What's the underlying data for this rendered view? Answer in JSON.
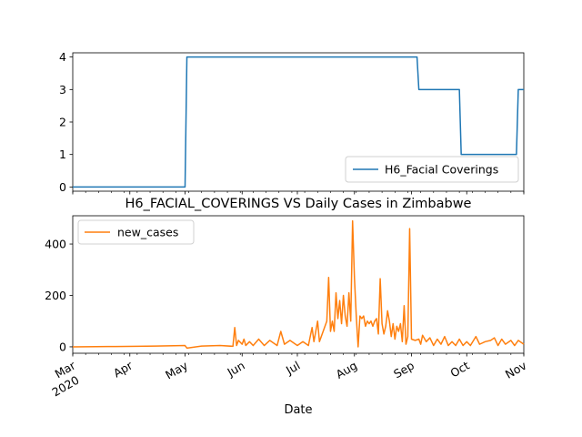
{
  "chart_data": [
    {
      "type": "line",
      "title": "",
      "xlabel": "",
      "ylabel": "",
      "xlim": [
        "2020-03-01",
        "2020-11-01"
      ],
      "ylim": [
        -0.13,
        4.13
      ],
      "y_ticks": [
        0,
        1,
        2,
        3,
        4
      ],
      "grid": false,
      "legend_position": "lower-right",
      "series": [
        {
          "name": "H6_Facial Coverings",
          "color": "#1f77b4",
          "step_points": [
            {
              "x": "2020-03-01",
              "y": 0
            },
            {
              "x": "2020-05-01",
              "y": 0
            },
            {
              "x": "2020-05-02",
              "y": 4
            },
            {
              "x": "2020-09-04",
              "y": 4
            },
            {
              "x": "2020-09-05",
              "y": 3
            },
            {
              "x": "2020-09-27",
              "y": 3
            },
            {
              "x": "2020-09-28",
              "y": 1
            },
            {
              "x": "2020-10-28",
              "y": 1
            },
            {
              "x": "2020-10-29",
              "y": 3
            },
            {
              "x": "2020-11-01",
              "y": 3
            }
          ]
        }
      ]
    },
    {
      "type": "line",
      "title": "H6_FACIAL_COVERINGS VS Daily Cases in Zimbabwe",
      "xlabel": "Date",
      "ylabel": "",
      "xlim": [
        "2020-03-01",
        "2020-11-01"
      ],
      "ylim": [
        -25,
        510
      ],
      "y_ticks": [
        0,
        200,
        400
      ],
      "x_ticks": [
        {
          "date": "2020-03-01",
          "label": "Mar",
          "sublabel": "2020"
        },
        {
          "date": "2020-04-01",
          "label": "Apr"
        },
        {
          "date": "2020-05-01",
          "label": "May"
        },
        {
          "date": "2020-06-01",
          "label": "Jun"
        },
        {
          "date": "2020-07-01",
          "label": "Jul"
        },
        {
          "date": "2020-08-01",
          "label": "Aug"
        },
        {
          "date": "2020-09-01",
          "label": "Sep"
        },
        {
          "date": "2020-10-01",
          "label": "Oct"
        },
        {
          "date": "2020-11-01",
          "label": "Nov"
        }
      ],
      "grid": false,
      "legend_position": "top-left",
      "series": [
        {
          "name": "new_cases",
          "color": "#ff7f0e",
          "points": [
            {
              "x": "2020-03-01",
              "y": 0
            },
            {
              "x": "2020-03-20",
              "y": 1
            },
            {
              "x": "2020-04-05",
              "y": 2
            },
            {
              "x": "2020-04-15",
              "y": 3
            },
            {
              "x": "2020-04-25",
              "y": 4
            },
            {
              "x": "2020-05-01",
              "y": 5
            },
            {
              "x": "2020-05-02",
              "y": -5
            },
            {
              "x": "2020-05-10",
              "y": 3
            },
            {
              "x": "2020-05-20",
              "y": 5
            },
            {
              "x": "2020-05-27",
              "y": 2
            },
            {
              "x": "2020-05-28",
              "y": 75
            },
            {
              "x": "2020-05-29",
              "y": 5
            },
            {
              "x": "2020-05-30",
              "y": 25
            },
            {
              "x": "2020-06-01",
              "y": 10
            },
            {
              "x": "2020-06-02",
              "y": 30
            },
            {
              "x": "2020-06-03",
              "y": 5
            },
            {
              "x": "2020-06-05",
              "y": 20
            },
            {
              "x": "2020-06-07",
              "y": 5
            },
            {
              "x": "2020-06-10",
              "y": 30
            },
            {
              "x": "2020-06-13",
              "y": 5
            },
            {
              "x": "2020-06-16",
              "y": 25
            },
            {
              "x": "2020-06-20",
              "y": 5
            },
            {
              "x": "2020-06-22",
              "y": 60
            },
            {
              "x": "2020-06-24",
              "y": 10
            },
            {
              "x": "2020-06-27",
              "y": 25
            },
            {
              "x": "2020-07-01",
              "y": 5
            },
            {
              "x": "2020-07-04",
              "y": 20
            },
            {
              "x": "2020-07-07",
              "y": 5
            },
            {
              "x": "2020-07-09",
              "y": 75
            },
            {
              "x": "2020-07-10",
              "y": 20
            },
            {
              "x": "2020-07-12",
              "y": 100
            },
            {
              "x": "2020-07-13",
              "y": 20
            },
            {
              "x": "2020-07-15",
              "y": 60
            },
            {
              "x": "2020-07-17",
              "y": 100
            },
            {
              "x": "2020-07-18",
              "y": 270
            },
            {
              "x": "2020-07-19",
              "y": 60
            },
            {
              "x": "2020-07-20",
              "y": 100
            },
            {
              "x": "2020-07-21",
              "y": 60
            },
            {
              "x": "2020-07-22",
              "y": 210
            },
            {
              "x": "2020-07-23",
              "y": 110
            },
            {
              "x": "2020-07-24",
              "y": 180
            },
            {
              "x": "2020-07-25",
              "y": 90
            },
            {
              "x": "2020-07-26",
              "y": 200
            },
            {
              "x": "2020-07-27",
              "y": 120
            },
            {
              "x": "2020-07-28",
              "y": 80
            },
            {
              "x": "2020-07-29",
              "y": 210
            },
            {
              "x": "2020-07-30",
              "y": 100
            },
            {
              "x": "2020-07-31",
              "y": 490
            },
            {
              "x": "2020-08-01",
              "y": 270
            },
            {
              "x": "2020-08-02",
              "y": 120
            },
            {
              "x": "2020-08-03",
              "y": 0
            },
            {
              "x": "2020-08-04",
              "y": 120
            },
            {
              "x": "2020-08-05",
              "y": 110
            },
            {
              "x": "2020-08-06",
              "y": 120
            },
            {
              "x": "2020-08-07",
              "y": 80
            },
            {
              "x": "2020-08-08",
              "y": 100
            },
            {
              "x": "2020-08-09",
              "y": 90
            },
            {
              "x": "2020-08-10",
              "y": 100
            },
            {
              "x": "2020-08-11",
              "y": 80
            },
            {
              "x": "2020-08-12",
              "y": 100
            },
            {
              "x": "2020-08-13",
              "y": 110
            },
            {
              "x": "2020-08-14",
              "y": 50
            },
            {
              "x": "2020-08-15",
              "y": 265
            },
            {
              "x": "2020-08-16",
              "y": 90
            },
            {
              "x": "2020-08-17",
              "y": 50
            },
            {
              "x": "2020-08-18",
              "y": 80
            },
            {
              "x": "2020-08-19",
              "y": 140
            },
            {
              "x": "2020-08-20",
              "y": 100
            },
            {
              "x": "2020-08-21",
              "y": 40
            },
            {
              "x": "2020-08-22",
              "y": 90
            },
            {
              "x": "2020-08-23",
              "y": 30
            },
            {
              "x": "2020-08-24",
              "y": 80
            },
            {
              "x": "2020-08-25",
              "y": 60
            },
            {
              "x": "2020-08-26",
              "y": 90
            },
            {
              "x": "2020-08-27",
              "y": 20
            },
            {
              "x": "2020-08-28",
              "y": 160
            },
            {
              "x": "2020-08-29",
              "y": 10
            },
            {
              "x": "2020-08-30",
              "y": 40
            },
            {
              "x": "2020-08-31",
              "y": 460
            },
            {
              "x": "2020-09-01",
              "y": 30
            },
            {
              "x": "2020-09-03",
              "y": 25
            },
            {
              "x": "2020-09-05",
              "y": 30
            },
            {
              "x": "2020-09-06",
              "y": 10
            },
            {
              "x": "2020-09-07",
              "y": 45
            },
            {
              "x": "2020-09-09",
              "y": 20
            },
            {
              "x": "2020-09-11",
              "y": 35
            },
            {
              "x": "2020-09-13",
              "y": 5
            },
            {
              "x": "2020-09-15",
              "y": 30
            },
            {
              "x": "2020-09-17",
              "y": 10
            },
            {
              "x": "2020-09-19",
              "y": 40
            },
            {
              "x": "2020-09-21",
              "y": 5
            },
            {
              "x": "2020-09-23",
              "y": 20
            },
            {
              "x": "2020-09-25",
              "y": 5
            },
            {
              "x": "2020-09-27",
              "y": 30
            },
            {
              "x": "2020-09-29",
              "y": 5
            },
            {
              "x": "2020-10-01",
              "y": 20
            },
            {
              "x": "2020-10-03",
              "y": 5
            },
            {
              "x": "2020-10-06",
              "y": 40
            },
            {
              "x": "2020-10-08",
              "y": 10
            },
            {
              "x": "2020-10-11",
              "y": 20
            },
            {
              "x": "2020-10-14",
              "y": 25
            },
            {
              "x": "2020-10-16",
              "y": 35
            },
            {
              "x": "2020-10-18",
              "y": 5
            },
            {
              "x": "2020-10-20",
              "y": 30
            },
            {
              "x": "2020-10-22",
              "y": 10
            },
            {
              "x": "2020-10-25",
              "y": 25
            },
            {
              "x": "2020-10-27",
              "y": 5
            },
            {
              "x": "2020-10-29",
              "y": 25
            },
            {
              "x": "2020-11-01",
              "y": 10
            }
          ]
        }
      ]
    }
  ]
}
